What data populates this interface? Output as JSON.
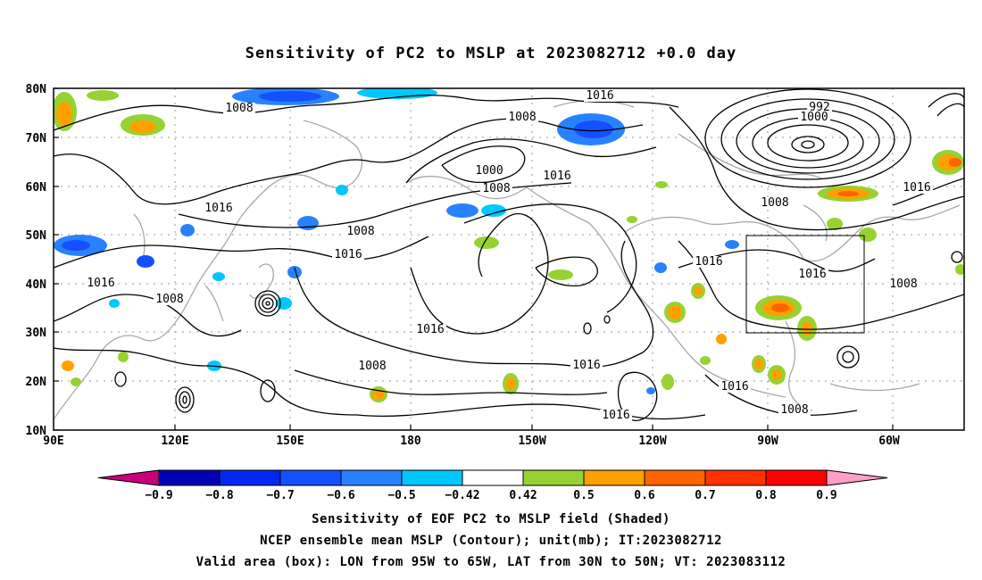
{
  "title": "Sensitivity of PC2 to MSLP at 2023082712 +0.0 day",
  "lat_ticks": [
    "80N",
    "70N",
    "60N",
    "50N",
    "40N",
    "30N",
    "20N",
    "10N"
  ],
  "lon_ticks": [
    "90E",
    "120E",
    "150E",
    "180",
    "150W",
    "120W",
    "90W",
    "60W"
  ],
  "contour_labels": [
    "1008",
    "1016",
    "1008",
    "1000",
    "992",
    "1008",
    "1000",
    "1008",
    "1016",
    "1016",
    "1016",
    "1008",
    "1016",
    "1016",
    "1016",
    "1008",
    "1016",
    "1008",
    "1016",
    "1016",
    "1016",
    "1008",
    "1016",
    "1008"
  ],
  "colorbar": {
    "labels": [
      "-0.9",
      "-0.8",
      "-0.7",
      "-0.6",
      "-0.5",
      "-0.42",
      "0.42",
      "0.5",
      "0.6",
      "0.7",
      "0.8",
      "0.9"
    ],
    "colors": [
      "#0000b4",
      "#0028f0",
      "#1450ff",
      "#2882ff",
      "#00c8ff",
      "#ffffff",
      "#96d232",
      "#ffa000",
      "#ff6400",
      "#ff3200",
      "#ff0000"
    ],
    "low_end_color": "#c8007a",
    "high_end_color": "#ff9ec8"
  },
  "valid_box": {
    "lon": [
      "95W",
      "65W"
    ],
    "lat": [
      "30N",
      "50N"
    ]
  },
  "footer": [
    "Sensitivity of EOF PC2 to MSLP field (Shaded)",
    "NCEP ensemble mean MSLP (Contour); unit(mb); IT:2023082712",
    "Valid area (box): LON from 95W to 65W, LAT from 30N to 50N; VT: 2023083112"
  ]
}
